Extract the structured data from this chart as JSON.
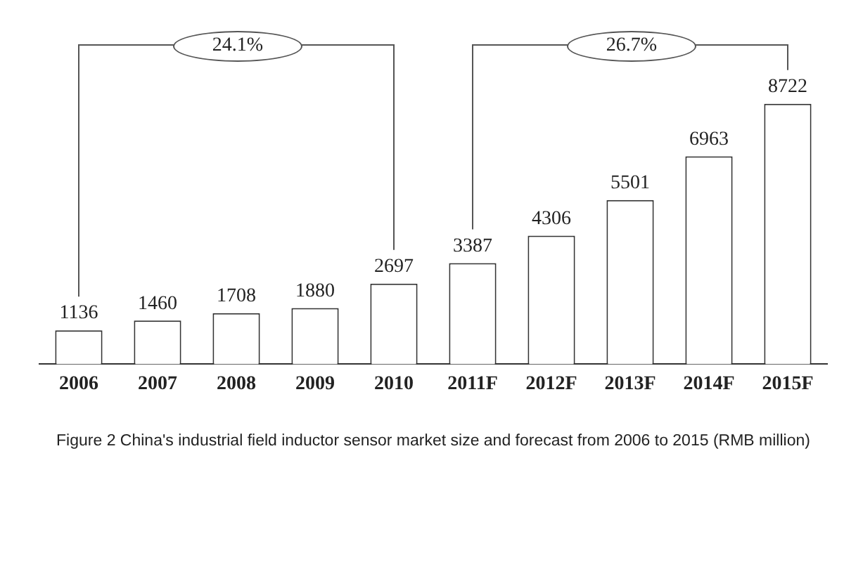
{
  "chart_data": {
    "type": "bar",
    "categories": [
      "2006",
      "2007",
      "2008",
      "2009",
      "2010",
      "2011F",
      "2012F",
      "2013F",
      "2014F",
      "2015F"
    ],
    "values": [
      1136,
      1460,
      1708,
      1880,
      2697,
      3387,
      4306,
      5501,
      6963,
      8722
    ],
    "color": "#ffffff",
    "data_labels": true,
    "grid": false,
    "legend": false,
    "annotations": [
      "24.1%",
      "26.7%",
      "Figure 2 China's industrial field inductor sensor market size and forecast from 2006 to 2015 (RMB million)"
    ]
  }
}
